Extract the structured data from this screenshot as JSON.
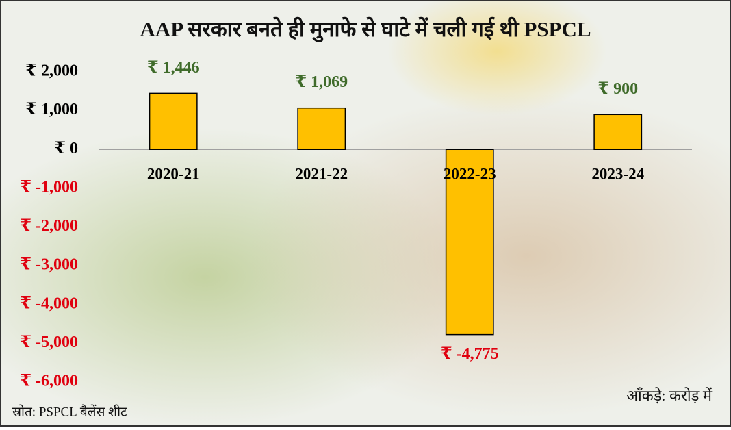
{
  "chart_data": {
    "type": "bar",
    "title": "AAP सरकार बनते ही मुनाफे से घाटे में चली गई थी PSPCL",
    "categories": [
      "2020-21",
      "2021-22",
      "2022-23",
      "2023-24"
    ],
    "values": [
      1446,
      1069,
      -4775,
      900
    ],
    "value_labels": [
      "₹ 1,446",
      "₹ 1,069",
      "₹ -4,775",
      "₹ 900"
    ],
    "color": "#ffc000",
    "ylim": [
      -6000,
      2000
    ],
    "yticks": [
      {
        "value": 2000,
        "label": "₹ 2,000"
      },
      {
        "value": 1000,
        "label": "₹ 1,000"
      },
      {
        "value": 0,
        "label": "₹ 0"
      },
      {
        "value": -1000,
        "label": "₹ -1,000"
      },
      {
        "value": -2000,
        "label": "₹ -2,000"
      },
      {
        "value": -3000,
        "label": "₹ -3,000"
      },
      {
        "value": -4000,
        "label": "₹ -4,000"
      },
      {
        "value": -5000,
        "label": "₹ -5,000"
      },
      {
        "value": -6000,
        "label": "₹ -6,000"
      }
    ],
    "source": "स्रोत: PSPCL बैलेंस शीट",
    "unit_note": "आँकड़े: करोड़ में"
  }
}
